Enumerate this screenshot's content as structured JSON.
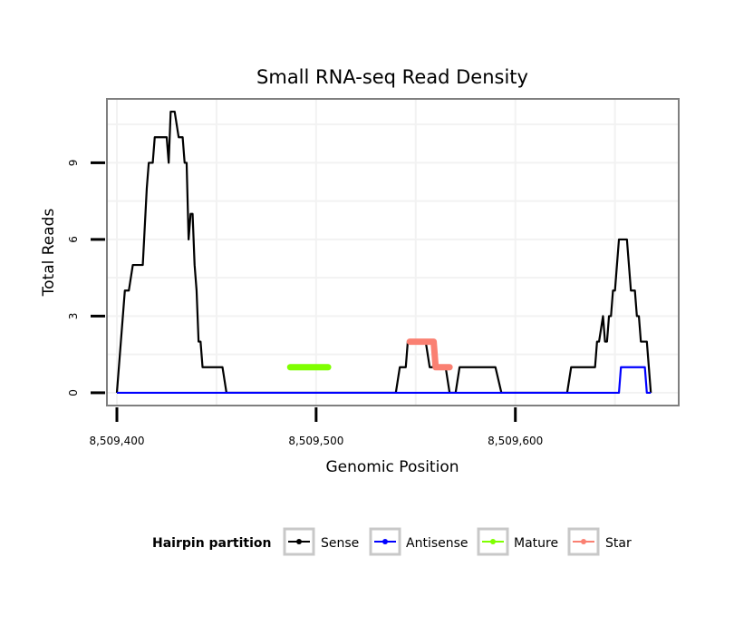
{
  "chart_data": {
    "type": "line",
    "title": "Small RNA-seq Read Density",
    "xlabel": "Genomic Position",
    "ylabel": "Total Reads",
    "xlim": [
      8509395,
      8509682
    ],
    "ylim": [
      -0.5,
      11.5
    ],
    "x_ticks": [
      {
        "value": 8509400,
        "label": "8,509,400"
      },
      {
        "value": 8509500,
        "label": "8,509,500"
      },
      {
        "value": 8509600,
        "label": "8,509,600"
      }
    ],
    "y_ticks": [
      {
        "value": 0,
        "label": "0"
      },
      {
        "value": 3,
        "label": "3"
      },
      {
        "value": 6,
        "label": "6"
      },
      {
        "value": 9,
        "label": "9"
      }
    ],
    "legend": {
      "title": "Hairpin partition",
      "position": "bottom",
      "entries": [
        {
          "name": "Sense",
          "color": "#000000"
        },
        {
          "name": "Antisense",
          "color": "#0000ff"
        },
        {
          "name": "Mature",
          "color": "#7fff00"
        },
        {
          "name": "Star",
          "color": "#fa8072"
        }
      ]
    },
    "series": [
      {
        "name": "Sense",
        "color": "#000000",
        "points": [
          [
            8509400,
            0
          ],
          [
            8509402,
            2
          ],
          [
            8509404,
            4
          ],
          [
            8509406,
            4
          ],
          [
            8509408,
            5
          ],
          [
            8509410,
            5
          ],
          [
            8509413,
            5
          ],
          [
            8509415,
            8
          ],
          [
            8509416,
            9
          ],
          [
            8509418,
            9
          ],
          [
            8509419,
            10
          ],
          [
            8509421,
            10
          ],
          [
            8509423,
            10
          ],
          [
            8509425,
            10
          ],
          [
            8509426,
            9
          ],
          [
            8509427,
            11
          ],
          [
            8509429,
            11
          ],
          [
            8509431,
            10
          ],
          [
            8509433,
            10
          ],
          [
            8509434,
            9
          ],
          [
            8509435,
            9
          ],
          [
            8509436,
            6
          ],
          [
            8509437,
            7
          ],
          [
            8509438,
            7
          ],
          [
            8509439,
            5
          ],
          [
            8509440,
            4
          ],
          [
            8509441,
            2
          ],
          [
            8509442,
            2
          ],
          [
            8509443,
            1
          ],
          [
            8509445,
            1
          ],
          [
            8509453,
            1
          ],
          [
            8509455,
            0
          ],
          [
            8509540,
            0
          ],
          [
            8509542,
            1
          ],
          [
            8509545,
            1
          ],
          [
            8509546,
            2
          ],
          [
            8509555,
            2
          ],
          [
            8509557,
            1
          ],
          [
            8509565,
            1
          ],
          [
            8509567,
            0
          ],
          [
            8509570,
            0
          ],
          [
            8509572,
            1
          ],
          [
            8509590,
            1
          ],
          [
            8509593,
            0
          ],
          [
            8509626,
            0
          ],
          [
            8509628,
            1
          ],
          [
            8509640,
            1
          ],
          [
            8509641,
            2
          ],
          [
            8509642,
            2
          ],
          [
            8509644,
            3
          ],
          [
            8509645,
            2
          ],
          [
            8509646,
            2
          ],
          [
            8509647,
            3
          ],
          [
            8509648,
            3
          ],
          [
            8509649,
            4
          ],
          [
            8509650,
            4
          ],
          [
            8509651,
            5
          ],
          [
            8509652,
            6
          ],
          [
            8509654,
            6
          ],
          [
            8509656,
            6
          ],
          [
            8509657,
            5
          ],
          [
            8509658,
            4
          ],
          [
            8509660,
            4
          ],
          [
            8509661,
            3
          ],
          [
            8509662,
            3
          ],
          [
            8509663,
            2
          ],
          [
            8509666,
            2
          ],
          [
            8509667,
            1
          ],
          [
            8509668,
            0
          ]
        ]
      },
      {
        "name": "Antisense",
        "color": "#0000ff",
        "points": [
          [
            8509400,
            0
          ],
          [
            8509652,
            0
          ],
          [
            8509653,
            1
          ],
          [
            8509665,
            1
          ],
          [
            8509666,
            0
          ],
          [
            8509668,
            0
          ]
        ]
      },
      {
        "name": "Mature",
        "color": "#7fff00",
        "points": [
          [
            8509487,
            1
          ],
          [
            8509506,
            1
          ]
        ]
      },
      {
        "name": "Star",
        "color": "#fa8072",
        "points": [
          [
            8509547,
            2
          ],
          [
            8509559,
            2
          ],
          [
            8509560,
            1
          ],
          [
            8509567,
            1
          ]
        ]
      }
    ]
  }
}
